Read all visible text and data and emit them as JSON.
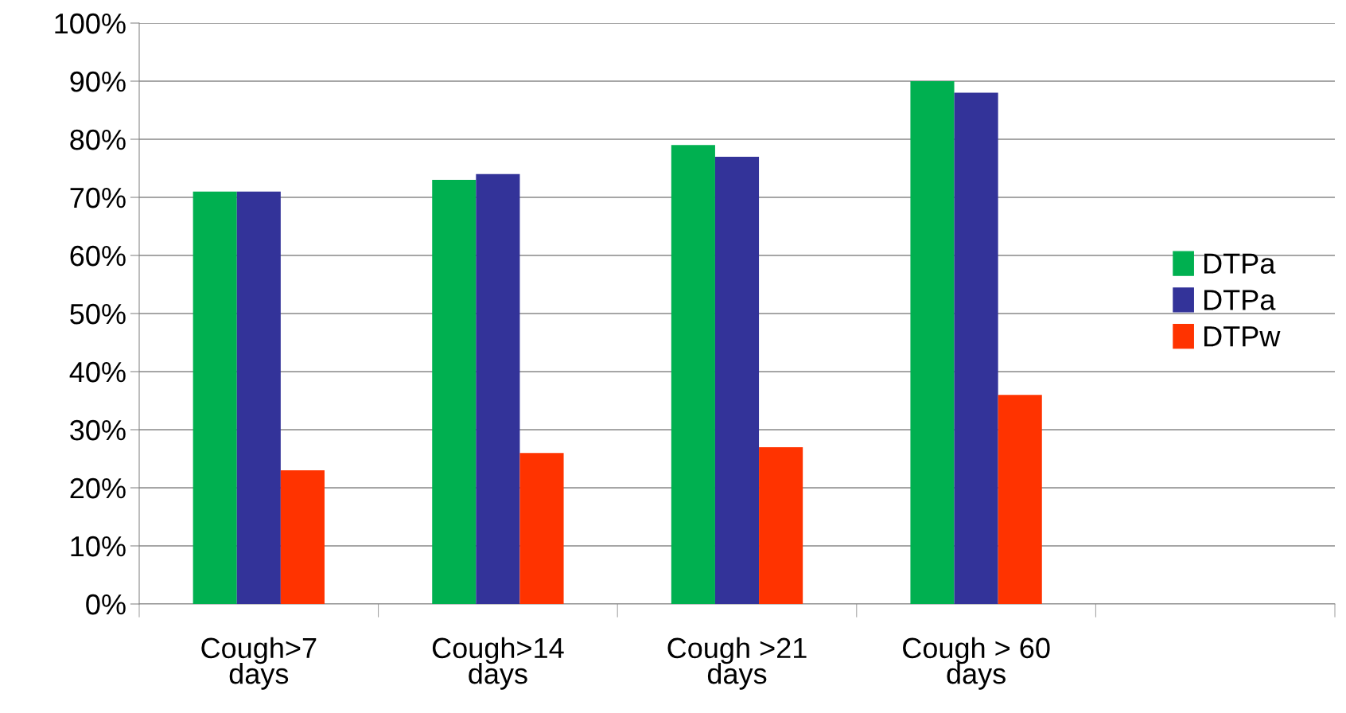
{
  "chart_data": {
    "type": "bar",
    "categories": [
      "Cough>7\ndays",
      "Cough>14\ndays",
      "Cough >21\ndays",
      "Cough > 60\ndays",
      null
    ],
    "series": [
      {
        "name": "DTPa",
        "color": "#00b050",
        "values": [
          71,
          73,
          79,
          90,
          null
        ]
      },
      {
        "name": "DTPa",
        "color": "#333399",
        "values": [
          71,
          74,
          77,
          88,
          null
        ]
      },
      {
        "name": "DTPw",
        "color": "#ff3300",
        "values": [
          23,
          26,
          27,
          36,
          null
        ]
      }
    ],
    "ylim": [
      0,
      100
    ],
    "yticks": [
      {
        "value": 0,
        "label": "0%"
      },
      {
        "value": 10,
        "label": "10%"
      },
      {
        "value": 20,
        "label": "20%"
      },
      {
        "value": 30,
        "label": "30%"
      },
      {
        "value": 40,
        "label": "40%"
      },
      {
        "value": 50,
        "label": "50%"
      },
      {
        "value": 60,
        "label": "60%"
      },
      {
        "value": 70,
        "label": "70%"
      },
      {
        "value": 80,
        "label": "80%"
      },
      {
        "value": 90,
        "label": "90%"
      },
      {
        "value": 100,
        "label": "100%"
      }
    ],
    "grid": "y",
    "legend": "right"
  }
}
